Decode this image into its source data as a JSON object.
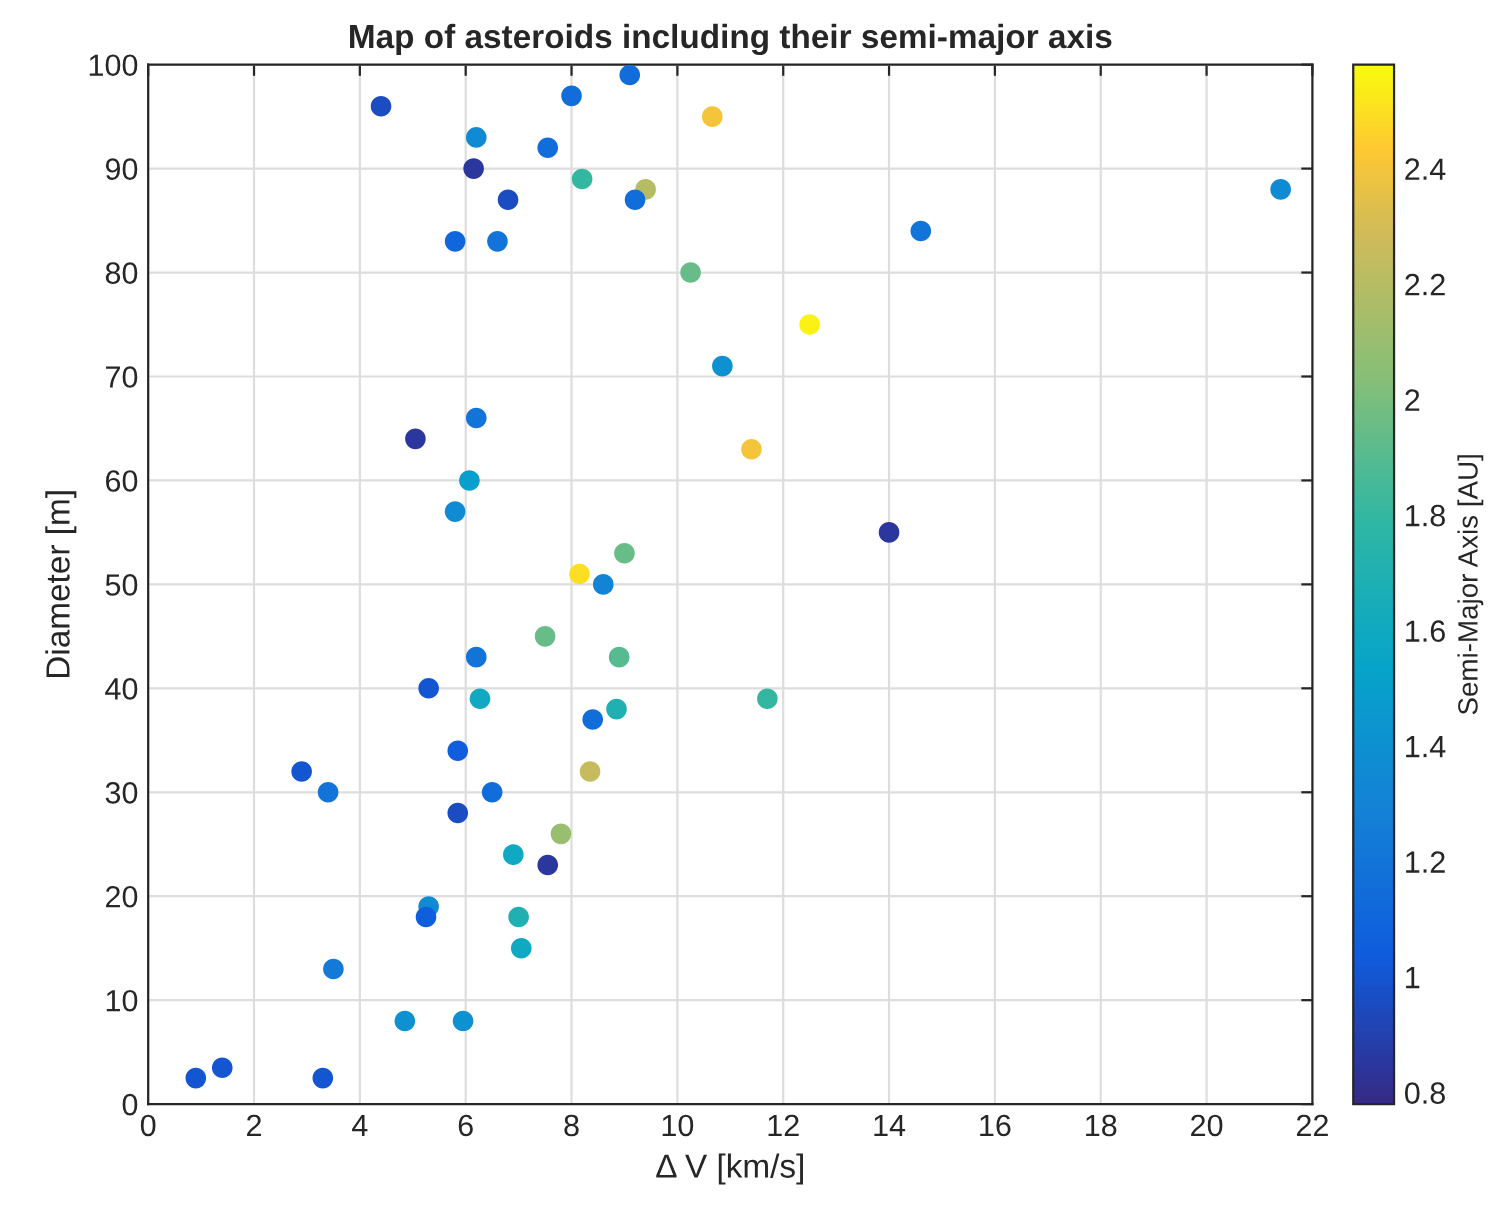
{
  "chart_data": {
    "type": "scatter",
    "title": "Map of asteroids including their semi-major axis",
    "xlabel": "Δ V [km/s]",
    "ylabel": "Diameter [m]",
    "clabel": "Semi-Major Axis [AU]",
    "x": [
      4.4,
      8.0,
      9.1,
      10.66,
      6.2,
      7.55,
      6.15,
      8.2,
      9.4,
      9.2,
      6.8,
      5.8,
      6.6,
      10.25,
      12.5,
      10.85,
      6.2,
      5.05,
      6.07,
      5.8,
      11.4,
      14.0,
      8.15,
      8.6,
      9.0,
      7.5,
      6.2,
      8.9,
      5.3,
      6.27,
      8.85,
      11.7,
      8.4,
      5.85,
      2.9,
      3.4,
      6.5,
      8.35,
      5.85,
      7.8,
      6.9,
      7.55,
      5.3,
      5.25,
      7.0,
      7.05,
      3.5,
      4.85,
      5.95,
      0.9,
      1.4,
      3.3,
      21.4,
      14.6
    ],
    "values": [
      96,
      97,
      99,
      95,
      93,
      92,
      90,
      89,
      88,
      87,
      87,
      83,
      83,
      80,
      75,
      71,
      66,
      64,
      60,
      57,
      63,
      55,
      51,
      50,
      53,
      45,
      43,
      43,
      40,
      39,
      38,
      39,
      37,
      34,
      32,
      30,
      30,
      32,
      28,
      26,
      24,
      23,
      19,
      18,
      18,
      15,
      13,
      8,
      8,
      2.5,
      3.5,
      2.5,
      88,
      84
    ],
    "cvalues": [
      0.95,
      1.15,
      1.15,
      2.4,
      1.35,
      1.15,
      0.85,
      1.8,
      2.2,
      1.15,
      0.95,
      1.1,
      1.2,
      1.95,
      2.55,
      1.4,
      1.2,
      0.85,
      1.5,
      1.35,
      2.4,
      0.85,
      2.5,
      1.3,
      1.95,
      1.95,
      1.2,
      1.9,
      1.0,
      1.6,
      1.7,
      1.8,
      1.15,
      1.05,
      1.0,
      1.2,
      1.15,
      2.25,
      0.95,
      2.1,
      1.6,
      0.85,
      1.35,
      1.05,
      1.7,
      1.6,
      1.25,
      1.4,
      1.4,
      1.0,
      1.0,
      1.0,
      1.35,
      1.2
    ],
    "xlim": [
      0,
      22
    ],
    "xticks": [
      0,
      2,
      4,
      6,
      8,
      10,
      12,
      14,
      16,
      18,
      20,
      22
    ],
    "ylim": [
      0,
      100
    ],
    "yticks": [
      0,
      10,
      20,
      30,
      40,
      50,
      60,
      70,
      80,
      90,
      100
    ],
    "clim": [
      0.78,
      2.58
    ],
    "cticks": [
      0.8,
      1,
      1.2,
      1.4,
      1.6,
      1.8,
      2,
      2.2,
      2.4
    ],
    "grid": true,
    "marker": "circle"
  }
}
